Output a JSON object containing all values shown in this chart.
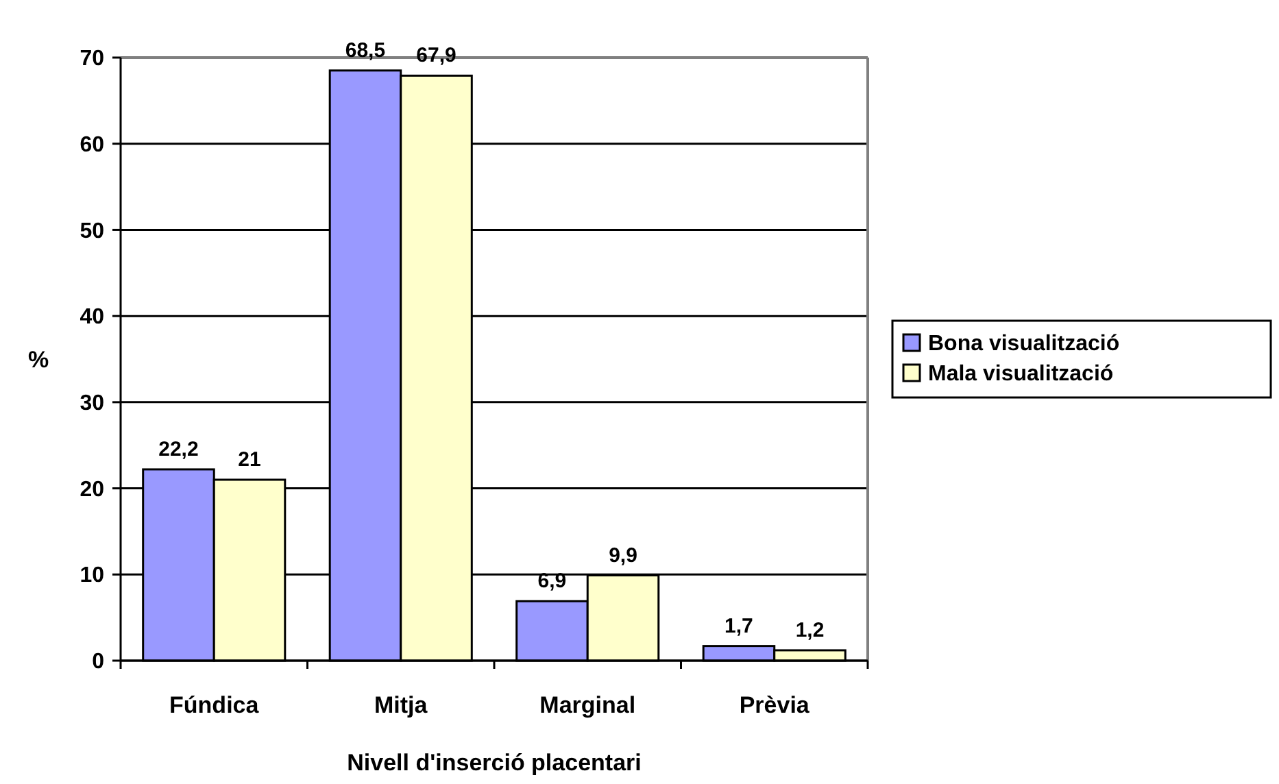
{
  "chart_data": {
    "type": "bar",
    "xlabel": "Nivell d'inserció placentari",
    "ylabel": "%",
    "categories": [
      "Fúndica",
      "Mitja",
      "Marginal",
      "Prèvia"
    ],
    "series": [
      {
        "name": "Bona visualització",
        "color": "#9999ff",
        "values": [
          22.2,
          68.5,
          6.9,
          1.7
        ],
        "value_labels": [
          "22,2",
          "68,5",
          "6,9",
          "1,7"
        ]
      },
      {
        "name": "Mala visualització",
        "color": "#ffffcc",
        "values": [
          21,
          67.9,
          9.9,
          1.2
        ],
        "value_labels": [
          "21",
          "67,9",
          "9,9",
          "1,2"
        ]
      }
    ],
    "ylim": [
      0,
      70
    ],
    "yticks": [
      0,
      10,
      20,
      30,
      40,
      50,
      60,
      70
    ],
    "grid": "y",
    "legend": "right"
  }
}
